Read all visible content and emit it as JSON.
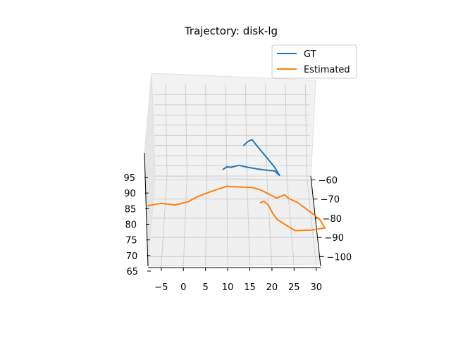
{
  "chart_data": {
    "type": "line",
    "projection": "3d",
    "title": "Trajectory: disk-lg",
    "grid": true,
    "legend_placement": "top-right",
    "axes": {
      "x": {
        "label": "",
        "range": [
          -8,
          31
        ],
        "ticks": [
          "−5",
          "0",
          "5",
          "10",
          "15",
          "20",
          "25",
          "30"
        ],
        "tick_values": [
          -5,
          0,
          5,
          10,
          15,
          20,
          25,
          30
        ]
      },
      "y": {
        "label": "",
        "range": [
          -58,
          -105
        ],
        "ticks": [
          "−100",
          "−90",
          "−80",
          "−70",
          "−60"
        ],
        "tick_values": [
          -100,
          -90,
          -80,
          -70,
          -60
        ]
      },
      "z": {
        "label": "",
        "range": [
          65,
          110
        ],
        "ticks": [
          "65",
          "70",
          "75",
          "80",
          "85",
          "90",
          "95"
        ],
        "tick_values": [
          65,
          70,
          75,
          80,
          85,
          90,
          95
        ]
      }
    },
    "series": [
      {
        "name": "GT",
        "color": "#1f77b4",
        "points": [
          [
            9,
            -60,
            70
          ],
          [
            10,
            -64,
            75
          ],
          [
            11,
            -70,
            80
          ],
          [
            13,
            -76,
            86
          ],
          [
            15,
            -82,
            90
          ],
          [
            17,
            -88,
            94
          ],
          [
            19,
            -94,
            98
          ],
          [
            21,
            -100,
            102
          ],
          [
            22,
            -104,
            103
          ],
          [
            21,
            -102,
            105
          ],
          [
            19,
            -98,
            107
          ],
          [
            17,
            -94,
            109
          ],
          [
            16,
            -92,
            110
          ],
          [
            15,
            -92,
            109
          ],
          [
            14,
            -93,
            108
          ]
        ]
      },
      {
        "name": "Estimated",
        "color": "#ff7f0e",
        "points": [
          [
            -8,
            -104,
            90
          ],
          [
            -5,
            -100,
            88
          ],
          [
            -3,
            -98,
            86
          ],
          [
            -2,
            -97,
            85
          ],
          [
            1,
            -94,
            84
          ],
          [
            3,
            -90,
            83
          ],
          [
            6,
            -86,
            82
          ],
          [
            8,
            -82,
            80
          ],
          [
            10,
            -78,
            78
          ],
          [
            12,
            -76,
            76
          ],
          [
            14,
            -75,
            75
          ],
          [
            16,
            -74,
            74
          ],
          [
            18,
            -74,
            73
          ],
          [
            20,
            -74,
            71
          ],
          [
            22,
            -74,
            69
          ],
          [
            23,
            -72,
            68
          ],
          [
            24,
            -70,
            67
          ],
          [
            25,
            -72,
            67
          ],
          [
            27,
            -74,
            67
          ],
          [
            30,
            -78,
            66
          ],
          [
            32,
            -82,
            66
          ],
          [
            33,
            -85,
            65
          ],
          [
            30,
            -85,
            64
          ],
          [
            26,
            -83,
            62
          ],
          [
            24,
            -79,
            61
          ],
          [
            22,
            -75,
            60
          ],
          [
            21,
            -73,
            61
          ],
          [
            20,
            -71,
            63
          ],
          [
            19,
            -70,
            64
          ],
          [
            18,
            -72,
            65
          ]
        ]
      }
    ]
  }
}
